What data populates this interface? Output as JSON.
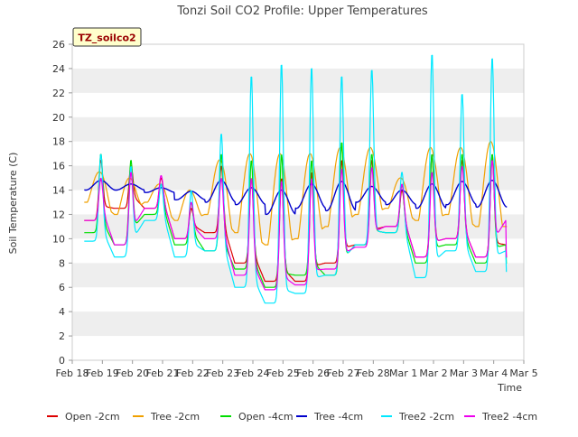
{
  "chart_data": {
    "type": "line",
    "title": "Tonzi Soil CO2 Profile: Upper Temperatures",
    "xlabel": "Time",
    "ylabel": "Soil Temperature (C)",
    "site_label": "TZ_soilco2",
    "ylim": [
      0,
      26
    ],
    "xlim": [
      0,
      15
    ],
    "y_ticks": [
      0,
      2,
      4,
      6,
      8,
      10,
      12,
      14,
      16,
      18,
      20,
      22,
      24,
      26
    ],
    "x_ticks": [
      {
        "x": 0,
        "label": "Feb 18"
      },
      {
        "x": 1,
        "label": "Feb 19"
      },
      {
        "x": 2,
        "label": "Feb 20"
      },
      {
        "x": 3,
        "label": "Feb 21"
      },
      {
        "x": 4,
        "label": "Feb 22"
      },
      {
        "x": 5,
        "label": "Feb 23"
      },
      {
        "x": 6,
        "label": "Feb 24"
      },
      {
        "x": 7,
        "label": "Feb 25"
      },
      {
        "x": 8,
        "label": "Feb 26"
      },
      {
        "x": 9,
        "label": "Feb 27"
      },
      {
        "x": 10,
        "label": "Feb 28"
      },
      {
        "x": 11,
        "label": "Mar 1"
      },
      {
        "x": 12,
        "label": "Mar 2"
      },
      {
        "x": 13,
        "label": "Mar 3"
      },
      {
        "x": 14,
        "label": "Mar 4"
      },
      {
        "x": 15,
        "label": "Mar 5"
      }
    ],
    "grid_bands": true,
    "legend_position": "bottom",
    "days": {
      "day_offsets": [
        0.4,
        1.4,
        2.4,
        3.4,
        4.4,
        5.4,
        6.4,
        7.4,
        8.4,
        9.4,
        10.4,
        11.4,
        12.4,
        13.4
      ],
      "comment_free": true
    },
    "series": [
      {
        "name": "Open -2cm",
        "color": "#dd0000",
        "width": 1.2,
        "shape": "spiky",
        "mins": [
          11.5,
          12.5,
          12.5,
          10.0,
          10.5,
          8.0,
          6.5,
          6.5,
          8.0,
          9.5,
          11.0,
          8.5,
          10.0,
          8.5,
          9.5
        ],
        "maxs": [
          16.5,
          16.0,
          15.0,
          12.5,
          16.0,
          15.0,
          15.0,
          15.5,
          16.5,
          16.5,
          14.0,
          17.0,
          16.5,
          17.0
        ]
      },
      {
        "name": "Tree -2cm",
        "color": "#f0a000",
        "width": 1.2,
        "shape": "broad",
        "mins": [
          13.0,
          12.0,
          13.0,
          11.5,
          12.0,
          10.5,
          9.5,
          10.0,
          11.0,
          12.0,
          12.5,
          11.5,
          12.0,
          11.0,
          11.0
        ],
        "maxs": [
          15.5,
          15.0,
          14.5,
          14.0,
          16.5,
          17.0,
          17.0,
          17.0,
          17.5,
          17.5,
          15.0,
          17.5,
          17.5,
          18.0
        ]
      },
      {
        "name": "Open -4cm",
        "color": "#00dd00",
        "width": 1.2,
        "shape": "spiky",
        "mins": [
          10.5,
          9.5,
          12.0,
          9.5,
          9.0,
          7.5,
          6.0,
          7.0,
          7.0,
          9.5,
          10.5,
          8.0,
          9.5,
          8.0,
          9.5
        ],
        "maxs": [
          17.0,
          16.5,
          14.5,
          13.0,
          17.0,
          16.5,
          17.0,
          16.5,
          18.0,
          17.0,
          14.5,
          17.0,
          17.0,
          17.0
        ]
      },
      {
        "name": "Tree -4cm",
        "color": "#0000cc",
        "width": 1.4,
        "shape": "smooth",
        "mins": [
          14.0,
          14.0,
          13.8,
          13.2,
          13.0,
          12.8,
          12.0,
          12.5,
          12.3,
          13.0,
          12.8,
          12.5,
          12.8,
          12.6,
          13.3
        ],
        "maxs": [
          14.8,
          14.5,
          14.2,
          13.9,
          14.8,
          14.2,
          14.0,
          14.5,
          14.7,
          14.3,
          14.0,
          14.5,
          14.7,
          14.8
        ]
      },
      {
        "name": "Tree2 -2cm",
        "color": "#00e8ff",
        "width": 1.2,
        "shape": "spiky",
        "mins": [
          9.8,
          8.5,
          11.5,
          8.5,
          9.0,
          6.0,
          4.7,
          5.5,
          7.0,
          9.5,
          10.5,
          6.8,
          9.0,
          7.3,
          9.0
        ],
        "maxs": [
          17.0,
          16.0,
          14.5,
          14.0,
          18.7,
          23.5,
          24.5,
          24.2,
          23.5,
          24.0,
          15.5,
          25.3,
          22.0,
          25.0
        ]
      },
      {
        "name": "Tree2 -4cm",
        "color": "#ee00ee",
        "width": 1.2,
        "shape": "spiky",
        "mins": [
          11.5,
          9.5,
          12.5,
          10.0,
          10.0,
          7.0,
          5.8,
          6.2,
          7.5,
          9.3,
          11.0,
          8.5,
          10.0,
          8.5,
          11.5
        ],
        "maxs": [
          15.0,
          15.5,
          15.2,
          13.0,
          15.0,
          15.0,
          14.8,
          15.0,
          15.8,
          15.9,
          14.5,
          15.5,
          16.0,
          16.5
        ]
      }
    ]
  }
}
